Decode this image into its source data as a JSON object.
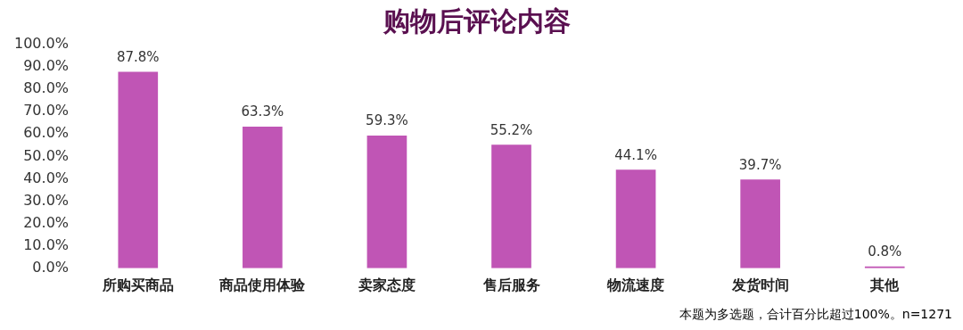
{
  "chart_data": {
    "type": "bar",
    "title": "购物后评论内容",
    "categories": [
      "所购买商品",
      "商品使用体验",
      "卖家态度",
      "售后服务",
      "物流速度",
      "发货时间",
      "其他"
    ],
    "values": [
      87.8,
      63.3,
      59.3,
      55.2,
      44.1,
      39.7,
      0.8
    ],
    "value_labels": [
      "87.8%",
      "63.3%",
      "59.3%",
      "55.2%",
      "44.1%",
      "39.7%",
      "0.8%"
    ],
    "color": "#c055b5",
    "ylim": [
      0,
      100
    ],
    "yticks": [
      {
        "value": 0,
        "label": "0.0%"
      },
      {
        "value": 10,
        "label": "10.0%"
      },
      {
        "value": 20,
        "label": "20.0%"
      },
      {
        "value": 30,
        "label": "30.0%"
      },
      {
        "value": 40,
        "label": "40.0%"
      },
      {
        "value": 50,
        "label": "50.0%"
      },
      {
        "value": 60,
        "label": "60.0%"
      },
      {
        "value": 70,
        "label": "70.0%"
      },
      {
        "value": 80,
        "label": "80.0%"
      },
      {
        "value": 90,
        "label": "90.0%"
      },
      {
        "value": 100,
        "label": "100.0%"
      }
    ],
    "grid": false,
    "legend": false,
    "annotations": [
      "本题为多选题，合计百分比超过100%。n=1271"
    ]
  }
}
